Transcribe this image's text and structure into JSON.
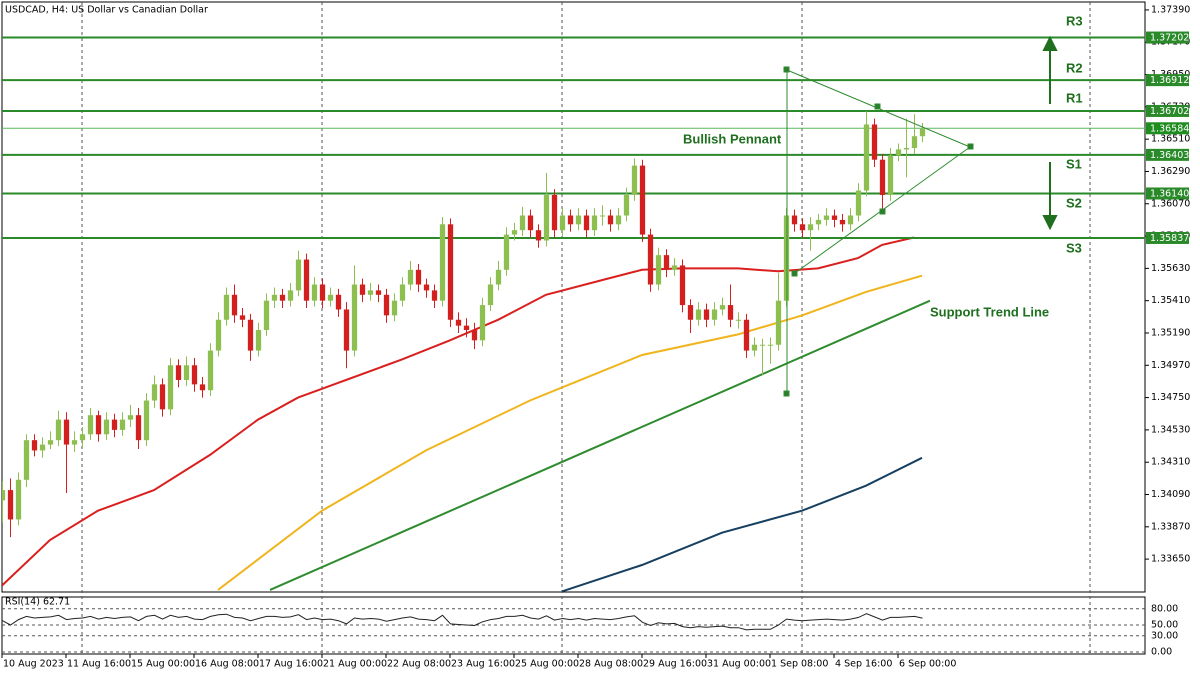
{
  "chart_data": {
    "type": "candlestick",
    "title": "USDCAD, H4:  US Dollar vs Canadian Dollar",
    "up_color": "#8cbf4f",
    "down_color": "#d41f1f",
    "xlim": [
      0,
      143
    ],
    "ylim": [
      1.33426,
      1.37444
    ],
    "yticks": [
      {
        "value": 1.3739,
        "label": "1.37390"
      },
      {
        "value": 1.3717,
        "label": "1.37170"
      },
      {
        "value": 1.3695,
        "label": "1.36950"
      },
      {
        "value": 1.3673,
        "label": "1.36730"
      },
      {
        "value": 1.3651,
        "label": "1.36510"
      },
      {
        "value": 1.3629,
        "label": "1.36290"
      },
      {
        "value": 1.3607,
        "label": "1.36070"
      },
      {
        "value": 1.3585,
        "label": "1.35850"
      },
      {
        "value": 1.3563,
        "label": "1.35630"
      },
      {
        "value": 1.3541,
        "label": "1.35410"
      },
      {
        "value": 1.3519,
        "label": "1.35190"
      },
      {
        "value": 1.3497,
        "label": "1.34970"
      },
      {
        "value": 1.3475,
        "label": "1.34750"
      },
      {
        "value": 1.3453,
        "label": "1.34530"
      },
      {
        "value": 1.3431,
        "label": "1.34310"
      },
      {
        "value": 1.3409,
        "label": "1.34090"
      },
      {
        "value": 1.3387,
        "label": "1.33870"
      },
      {
        "value": 1.3365,
        "label": "1.33650"
      }
    ],
    "xticks": [
      {
        "value": 0,
        "label": "10 Aug 2023"
      },
      {
        "value": 8,
        "label": "11 Aug 16:00"
      },
      {
        "value": 16,
        "label": "15 Aug 00:00"
      },
      {
        "value": 24,
        "label": "16 Aug 08:00"
      },
      {
        "value": 32,
        "label": "17 Aug 16:00"
      },
      {
        "value": 40,
        "label": "21 Aug 00:00"
      },
      {
        "value": 48,
        "label": "22 Aug 08:00"
      },
      {
        "value": 56,
        "label": "23 Aug 16:00"
      },
      {
        "value": 64,
        "label": "25 Aug 00:00"
      },
      {
        "value": 72,
        "label": "28 Aug 08:00"
      },
      {
        "value": 80,
        "label": "29 Aug 16:00"
      },
      {
        "value": 88,
        "label": "31 Aug 00:00"
      },
      {
        "value": 96,
        "label": "1 Sep 08:00"
      },
      {
        "value": 104,
        "label": "4 Sep 16:00"
      },
      {
        "value": 112,
        "label": "6 Sep 00:00"
      }
    ],
    "candles": [
      [
        1.3405,
        1.3418,
        1.339,
        1.3412
      ],
      [
        1.3412,
        1.342,
        1.338,
        1.3392
      ],
      [
        1.3392,
        1.3424,
        1.3388,
        1.3419
      ],
      [
        1.3419,
        1.345,
        1.3414,
        1.3446
      ],
      [
        1.3446,
        1.345,
        1.3435,
        1.3439
      ],
      [
        1.3439,
        1.3448,
        1.3434,
        1.3443
      ],
      [
        1.3443,
        1.3452,
        1.344,
        1.3446
      ],
      [
        1.3446,
        1.3466,
        1.3442,
        1.346
      ],
      [
        1.346,
        1.3465,
        1.341,
        1.3443
      ],
      [
        1.3443,
        1.3452,
        1.3438,
        1.3446
      ],
      [
        1.3446,
        1.3455,
        1.3441,
        1.345
      ],
      [
        1.345,
        1.3468,
        1.3446,
        1.3463
      ],
      [
        1.3463,
        1.3466,
        1.3445,
        1.345
      ],
      [
        1.345,
        1.3465,
        1.3446,
        1.346
      ],
      [
        1.346,
        1.3464,
        1.3448,
        1.3453
      ],
      [
        1.3453,
        1.3465,
        1.3449,
        1.346
      ],
      [
        1.346,
        1.347,
        1.3455,
        1.3463
      ],
      [
        1.3463,
        1.3468,
        1.344,
        1.3446
      ],
      [
        1.3446,
        1.3478,
        1.3442,
        1.3473
      ],
      [
        1.3473,
        1.349,
        1.3468,
        1.3484
      ],
      [
        1.3484,
        1.3488,
        1.3462,
        1.3467
      ],
      [
        1.3467,
        1.3502,
        1.3463,
        1.3497
      ],
      [
        1.3497,
        1.3501,
        1.3482,
        1.3487
      ],
      [
        1.3487,
        1.3503,
        1.3483,
        1.3497
      ],
      [
        1.3497,
        1.3502,
        1.3479,
        1.3484
      ],
      [
        1.3484,
        1.3489,
        1.3475,
        1.348
      ],
      [
        1.348,
        1.3512,
        1.3476,
        1.3507
      ],
      [
        1.3507,
        1.3533,
        1.3503,
        1.3528
      ],
      [
        1.3528,
        1.355,
        1.3524,
        1.3545
      ],
      [
        1.3545,
        1.3552,
        1.3526,
        1.3531
      ],
      [
        1.3531,
        1.3536,
        1.3523,
        1.3528
      ],
      [
        1.3528,
        1.3532,
        1.35,
        1.3507
      ],
      [
        1.3507,
        1.3526,
        1.3503,
        1.3521
      ],
      [
        1.3521,
        1.3546,
        1.3517,
        1.3541
      ],
      [
        1.3541,
        1.355,
        1.3536,
        1.3545
      ],
      [
        1.3545,
        1.3549,
        1.3536,
        1.3541
      ],
      [
        1.3541,
        1.3553,
        1.3537,
        1.3548
      ],
      [
        1.3548,
        1.3575,
        1.3544,
        1.3569
      ],
      [
        1.3569,
        1.3573,
        1.3536,
        1.3541
      ],
      [
        1.3541,
        1.3557,
        1.3537,
        1.3552
      ],
      [
        1.3552,
        1.3556,
        1.3536,
        1.3541
      ],
      [
        1.3541,
        1.355,
        1.3537,
        1.3545
      ],
      [
        1.3545,
        1.3549,
        1.353,
        1.3535
      ],
      [
        1.3535,
        1.354,
        1.3495,
        1.3507
      ],
      [
        1.3507,
        1.3565,
        1.3503,
        1.3552
      ],
      [
        1.3552,
        1.3556,
        1.354,
        1.3545
      ],
      [
        1.3545,
        1.3553,
        1.3541,
        1.3548
      ],
      [
        1.3548,
        1.3552,
        1.354,
        1.3545
      ],
      [
        1.3545,
        1.3549,
        1.3526,
        1.3531
      ],
      [
        1.3531,
        1.3546,
        1.3527,
        1.3541
      ],
      [
        1.3541,
        1.3557,
        1.3537,
        1.3552
      ],
      [
        1.3552,
        1.3568,
        1.3548,
        1.3562
      ],
      [
        1.3562,
        1.3566,
        1.3547,
        1.3552
      ],
      [
        1.3552,
        1.3556,
        1.3543,
        1.3548
      ],
      [
        1.3548,
        1.3552,
        1.3536,
        1.3541
      ],
      [
        1.3541,
        1.3598,
        1.3537,
        1.3593
      ],
      [
        1.3593,
        1.3597,
        1.3523,
        1.3528
      ],
      [
        1.3528,
        1.3533,
        1.3519,
        1.3524
      ],
      [
        1.3524,
        1.3529,
        1.3516,
        1.3521
      ],
      [
        1.3521,
        1.3526,
        1.3508,
        1.3514
      ],
      [
        1.3514,
        1.3543,
        1.351,
        1.3538
      ],
      [
        1.3538,
        1.3557,
        1.3534,
        1.3552
      ],
      [
        1.3552,
        1.3568,
        1.3548,
        1.3562
      ],
      [
        1.3562,
        1.3591,
        1.3558,
        1.3586
      ],
      [
        1.3586,
        1.3594,
        1.3582,
        1.3589
      ],
      [
        1.3589,
        1.3605,
        1.3585,
        1.3599
      ],
      [
        1.3599,
        1.3603,
        1.3584,
        1.3589
      ],
      [
        1.3589,
        1.3593,
        1.3577,
        1.3582
      ],
      [
        1.3582,
        1.3628,
        1.3578,
        1.3613
      ],
      [
        1.3613,
        1.3617,
        1.3584,
        1.3589
      ],
      [
        1.3589,
        1.3604,
        1.3585,
        1.3599
      ],
      [
        1.3599,
        1.3603,
        1.3588,
        1.3593
      ],
      [
        1.3593,
        1.3604,
        1.3589,
        1.3599
      ],
      [
        1.3599,
        1.3603,
        1.3584,
        1.3589
      ],
      [
        1.3589,
        1.3604,
        1.3585,
        1.3599
      ],
      [
        1.3599,
        1.3606,
        1.3592,
        1.3599
      ],
      [
        1.3599,
        1.3603,
        1.3588,
        1.3593
      ],
      [
        1.3593,
        1.3604,
        1.3589,
        1.3599
      ],
      [
        1.3599,
        1.3618,
        1.3595,
        1.3613
      ],
      [
        1.3613,
        1.3638,
        1.3609,
        1.3633
      ],
      [
        1.3633,
        1.3637,
        1.3581,
        1.3586
      ],
      [
        1.3586,
        1.359,
        1.3547,
        1.3552
      ],
      [
        1.3552,
        1.3577,
        1.3548,
        1.3572
      ],
      [
        1.3572,
        1.3576,
        1.3557,
        1.3562
      ],
      [
        1.3562,
        1.357,
        1.3558,
        1.3565
      ],
      [
        1.3565,
        1.3569,
        1.3533,
        1.3538
      ],
      [
        1.3538,
        1.3542,
        1.3519,
        1.3528
      ],
      [
        1.3528,
        1.354,
        1.3524,
        1.3535
      ],
      [
        1.3535,
        1.3539,
        1.3523,
        1.3528
      ],
      [
        1.3528,
        1.354,
        1.3524,
        1.3535
      ],
      [
        1.3535,
        1.3543,
        1.3531,
        1.3538
      ],
      [
        1.3538,
        1.3552,
        1.3523,
        1.3528
      ],
      [
        1.3528,
        1.3533,
        1.3522,
        1.3528
      ],
      [
        1.3528,
        1.3532,
        1.3502,
        1.3507
      ],
      [
        1.3507,
        1.3516,
        1.3503,
        1.3511
      ],
      [
        1.3511,
        1.3515,
        1.349,
        1.3511
      ],
      [
        1.3511,
        1.3516,
        1.3498,
        1.3511
      ],
      [
        1.3511,
        1.356,
        1.3507,
        1.3541
      ],
      [
        1.3541,
        1.3604,
        1.3537,
        1.3599
      ],
      [
        1.3599,
        1.3603,
        1.3588,
        1.3593
      ],
      [
        1.3593,
        1.3597,
        1.3584,
        1.3589
      ],
      [
        1.3589,
        1.3598,
        1.3575,
        1.3593
      ],
      [
        1.3593,
        1.36,
        1.3589,
        1.3596
      ],
      [
        1.3596,
        1.3604,
        1.3592,
        1.3599
      ],
      [
        1.3599,
        1.3603,
        1.3591,
        1.3596
      ],
      [
        1.3596,
        1.36,
        1.3588,
        1.3593
      ],
      [
        1.3593,
        1.3604,
        1.3589,
        1.3599
      ],
      [
        1.3599,
        1.3621,
        1.3595,
        1.3616
      ],
      [
        1.3616,
        1.367,
        1.3612,
        1.3661
      ],
      [
        1.3661,
        1.3665,
        1.3632,
        1.3637
      ],
      [
        1.3637,
        1.3641,
        1.36,
        1.3613
      ],
      [
        1.3613,
        1.3645,
        1.3609,
        1.364
      ],
      [
        1.364,
        1.3648,
        1.3636,
        1.3644
      ],
      [
        1.3644,
        1.3665,
        1.3625,
        1.3645
      ],
      [
        1.3645,
        1.3668,
        1.3641,
        1.3653
      ],
      [
        1.3653,
        1.3662,
        1.3649,
        1.3658
      ]
    ],
    "overlays": [
      {
        "color": "#d9201f",
        "x": [
          0,
          6,
          12,
          19,
          26,
          32,
          37,
          43,
          50,
          56,
          62,
          68,
          75,
          80,
          85,
          92,
          97,
          102,
          107,
          110,
          114
        ],
        "values": [
          1.3347,
          1.3378,
          1.3398,
          1.3412,
          1.3436,
          1.346,
          1.3475,
          1.3487,
          1.3501,
          1.3514,
          1.3528,
          1.3545,
          1.3555,
          1.3562,
          1.3563,
          1.3563,
          1.3561,
          1.3563,
          1.357,
          1.3579,
          1.3584
        ]
      },
      {
        "color": "#f0b41c",
        "x": [
          27,
          40,
          53,
          66,
          80,
          92,
          100,
          108,
          115
        ],
        "values": [
          1.3344,
          1.3398,
          1.3439,
          1.3473,
          1.3504,
          1.3518,
          1.3531,
          1.3547,
          1.3558
        ]
      },
      {
        "color": "#2e8b2e",
        "x": [
          33.5,
          116
        ],
        "values": [
          1.3344,
          1.3541
        ]
      },
      {
        "color": "#173f5f",
        "x": [
          70,
          80,
          90,
          100,
          108,
          115
        ],
        "values": [
          1.3343,
          1.3361,
          1.3383,
          1.3398,
          1.3415,
          1.3434
        ]
      }
    ],
    "level_color": "#2a8a2a",
    "levels": [
      {
        "name": "R3",
        "value": 1.37202,
        "label": "1.37202"
      },
      {
        "name": "R2",
        "value": 1.36912,
        "label": "1.36912"
      },
      {
        "name": "R1",
        "value": 1.36702,
        "label": "1.36702"
      },
      {
        "name": "S1",
        "value": 1.36403,
        "label": "1.36403"
      },
      {
        "name": "S2",
        "value": 1.3614,
        "label": "1.36140"
      },
      {
        "name": "S3",
        "value": 1.35837,
        "label": "1.35837"
      }
    ],
    "current_price": {
      "value": 1.36584,
      "label": "1.36584",
      "color": "#5cb85c"
    },
    "annotations": [
      "Bullish Pennant",
      "Support Trend Line"
    ],
    "rsi": {
      "title": "RSI(14) 62.71",
      "color": "#222222",
      "ylim": [
        0,
        100
      ],
      "yticks": [
        {
          "value": 80,
          "label": "80.00"
        },
        {
          "value": 50,
          "label": "50.00"
        },
        {
          "value": 30,
          "label": "30.00"
        },
        {
          "value": 0,
          "label": "0.00"
        }
      ],
      "values": [
        58,
        50,
        60,
        66,
        63,
        64,
        65,
        68,
        60,
        62,
        63,
        66,
        61,
        64,
        62,
        64,
        65,
        58,
        66,
        68,
        61,
        68,
        64,
        66,
        61,
        60,
        66,
        69,
        70,
        64,
        63,
        58,
        62,
        66,
        66,
        64,
        65,
        69,
        60,
        63,
        60,
        61,
        58,
        52,
        63,
        61,
        62,
        61,
        57,
        60,
        63,
        65,
        61,
        60,
        58,
        68,
        52,
        51,
        50,
        49,
        56,
        60,
        62,
        66,
        66,
        68,
        63,
        61,
        67,
        59,
        62,
        60,
        62,
        59,
        62,
        61,
        60,
        62,
        65,
        67,
        55,
        49,
        54,
        52,
        53,
        47,
        45,
        47,
        46,
        47,
        48,
        45,
        45,
        41,
        42,
        42,
        42,
        50,
        61,
        59,
        58,
        59,
        60,
        61,
        60,
        59,
        61,
        64,
        71,
        65,
        59,
        64,
        64,
        65,
        66,
        62.71
      ]
    }
  }
}
